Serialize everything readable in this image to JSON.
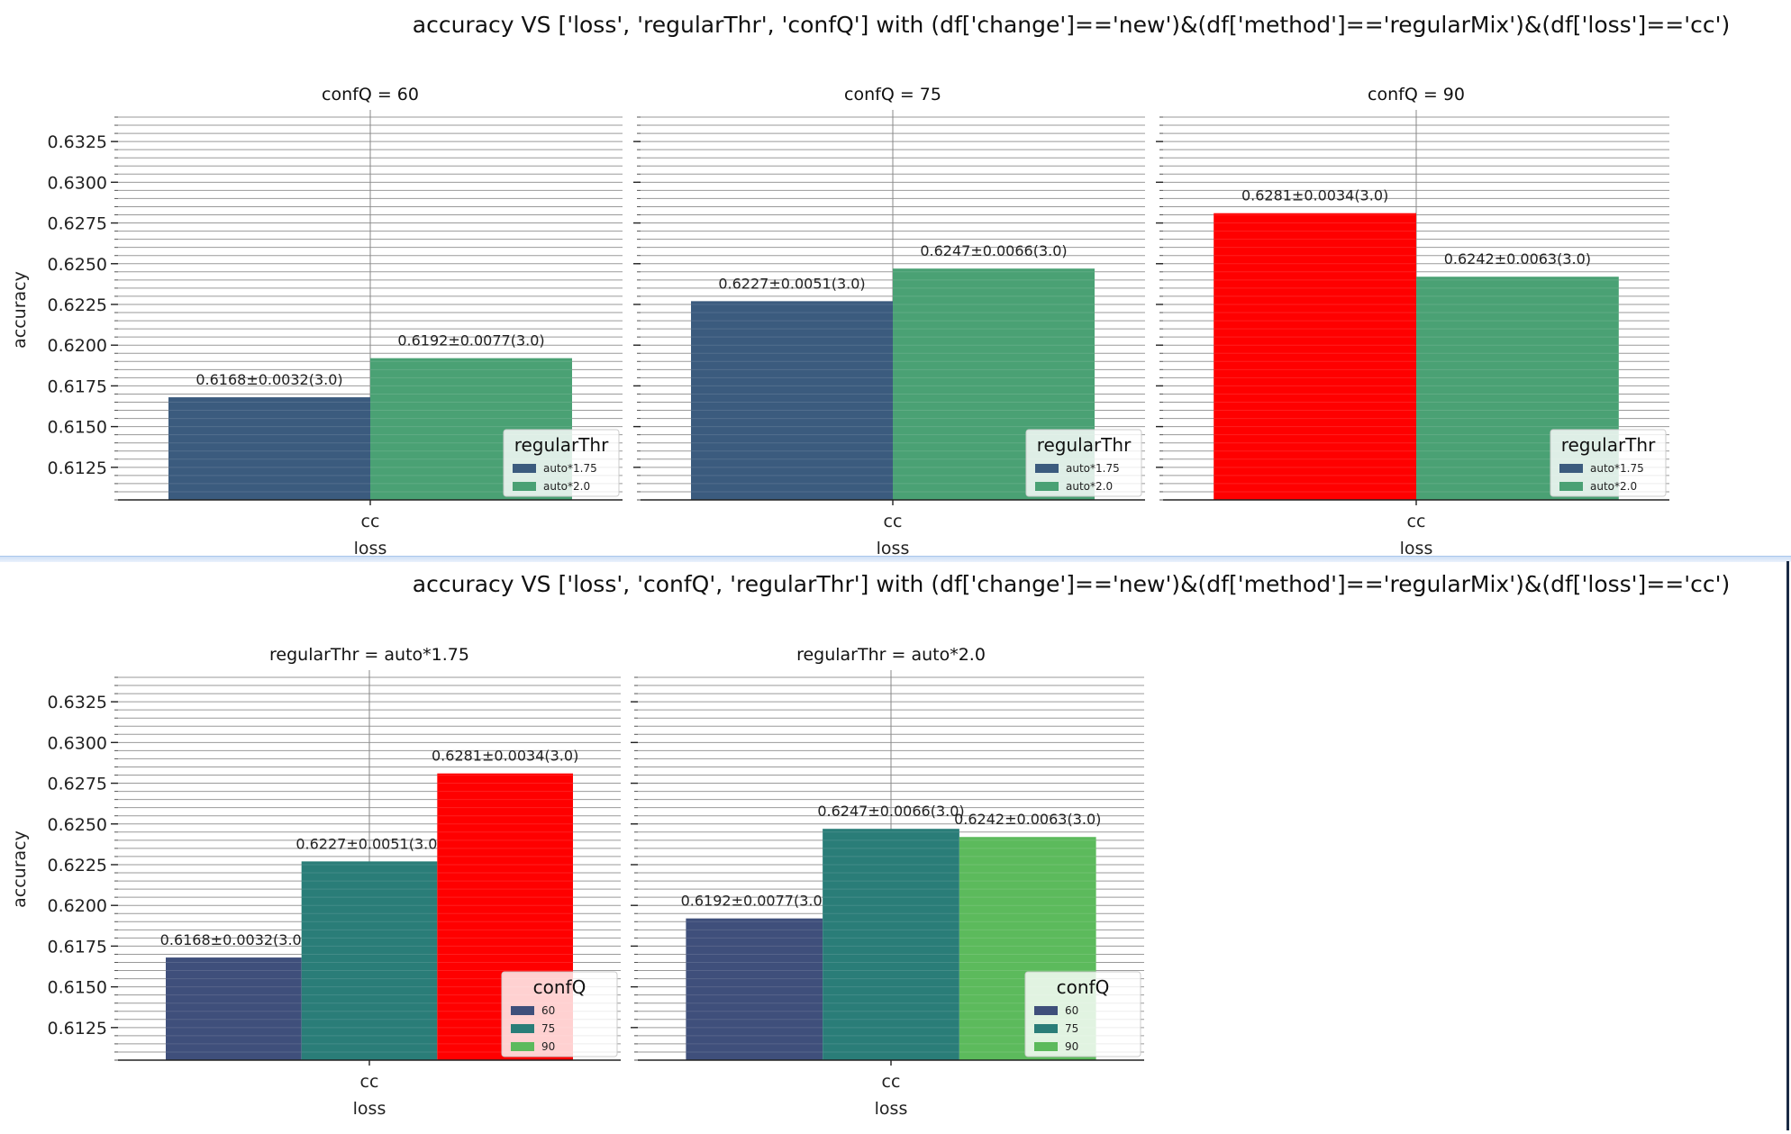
{
  "figures": [
    {
      "title": "accuracy VS ['loss', 'regularThr', 'confQ'] with (df['change']=='new')&(df['method']=='regularMix')&(df['loss']=='cc')",
      "ylabel": "accuracy",
      "legend_title": "regularThr",
      "legend_labels": [
        "auto*1.75",
        "auto*2.0"
      ],
      "legend_colors": [
        "#3b5b7e",
        "#4aa174"
      ]
    },
    {
      "title": "accuracy VS ['loss', 'confQ', 'regularThr'] with (df['change']=='new')&(df['method']=='regularMix')&(df['loss']=='cc')",
      "ylabel": "accuracy",
      "legend_title": "confQ",
      "legend_labels": [
        "60",
        "75",
        "90"
      ],
      "legend_colors": [
        "#3f4f7b",
        "#2a7d78",
        "#5cba5c"
      ]
    }
  ],
  "chart_data": [
    {
      "type": "bar",
      "title": "confQ = 60",
      "xlabel": "loss",
      "ylabel": "accuracy",
      "categories": [
        "cc"
      ],
      "ylim": [
        0.6105,
        0.634
      ],
      "yticks": [
        0.6125,
        0.615,
        0.6175,
        0.62,
        0.6225,
        0.625,
        0.6275,
        0.63,
        0.6325
      ],
      "ytick_labels": [
        "0.6125",
        "0.6150",
        "0.6175",
        "0.6200",
        "0.6225",
        "0.6250",
        "0.6275",
        "0.6300",
        "0.6325"
      ],
      "grid": true,
      "legend": "lower-right",
      "series": [
        {
          "name": "auto*1.75",
          "values": [
            0.6168
          ],
          "label": "0.6168±0.0032(3.0)",
          "color": "#3b5b7e"
        },
        {
          "name": "auto*2.0",
          "values": [
            0.6192
          ],
          "label": "0.6192±0.0077(3.0)",
          "color": "#4aa174"
        }
      ]
    },
    {
      "type": "bar",
      "title": "confQ = 75",
      "xlabel": "loss",
      "ylabel": "",
      "categories": [
        "cc"
      ],
      "ylim": [
        0.6105,
        0.634
      ],
      "yticks": [
        0.6125,
        0.615,
        0.6175,
        0.62,
        0.6225,
        0.625,
        0.6275,
        0.63,
        0.6325
      ],
      "ytick_labels": [],
      "grid": true,
      "legend": "lower-right",
      "series": [
        {
          "name": "auto*1.75",
          "values": [
            0.6227
          ],
          "label": "0.6227±0.0051(3.0)",
          "color": "#3b5b7e"
        },
        {
          "name": "auto*2.0",
          "values": [
            0.6247
          ],
          "label": "0.6247±0.0066(3.0)",
          "color": "#4aa174"
        }
      ]
    },
    {
      "type": "bar",
      "title": "confQ = 90",
      "xlabel": "loss",
      "ylabel": "",
      "categories": [
        "cc"
      ],
      "ylim": [
        0.6105,
        0.634
      ],
      "yticks": [
        0.6125,
        0.615,
        0.6175,
        0.62,
        0.6225,
        0.625,
        0.6275,
        0.63,
        0.6325
      ],
      "ytick_labels": [],
      "grid": true,
      "legend": "lower-right",
      "series": [
        {
          "name": "auto*1.75",
          "values": [
            0.6281
          ],
          "label": "0.6281±0.0034(3.0)",
          "color": "#ff0000"
        },
        {
          "name": "auto*2.0",
          "values": [
            0.6242
          ],
          "label": "0.6242±0.0063(3.0)",
          "color": "#4aa174"
        }
      ]
    },
    {
      "type": "bar",
      "title": "regularThr = auto*1.75",
      "xlabel": "loss",
      "ylabel": "accuracy",
      "categories": [
        "cc"
      ],
      "ylim": [
        0.6105,
        0.634
      ],
      "yticks": [
        0.6125,
        0.615,
        0.6175,
        0.62,
        0.6225,
        0.625,
        0.6275,
        0.63,
        0.6325
      ],
      "ytick_labels": [
        "0.6125",
        "0.6150",
        "0.6175",
        "0.6200",
        "0.6225",
        "0.6250",
        "0.6275",
        "0.6300",
        "0.6325"
      ],
      "grid": true,
      "legend": "lower-right",
      "series": [
        {
          "name": "60",
          "values": [
            0.6168
          ],
          "label": "0.6168±0.0032(3.0)",
          "color": "#3f4f7b"
        },
        {
          "name": "75",
          "values": [
            0.6227
          ],
          "label": "0.6227±0.0051(3.0)",
          "color": "#2a7d78"
        },
        {
          "name": "90",
          "values": [
            0.6281
          ],
          "label": "0.6281±0.0034(3.0)",
          "color": "#ff0000"
        }
      ]
    },
    {
      "type": "bar",
      "title": "regularThr = auto*2.0",
      "xlabel": "loss",
      "ylabel": "",
      "categories": [
        "cc"
      ],
      "ylim": [
        0.6105,
        0.634
      ],
      "yticks": [
        0.6125,
        0.615,
        0.6175,
        0.62,
        0.6225,
        0.625,
        0.6275,
        0.63,
        0.6325
      ],
      "ytick_labels": [],
      "grid": true,
      "legend": "lower-right",
      "series": [
        {
          "name": "60",
          "values": [
            0.6192
          ],
          "label": "0.6192±0.0077(3.0)",
          "color": "#3f4f7b"
        },
        {
          "name": "75",
          "values": [
            0.6247
          ],
          "label": "0.6247±0.0066(3.0)",
          "color": "#2a7d78"
        },
        {
          "name": "90",
          "values": [
            0.6242
          ],
          "label": "0.6242±0.0063(3.0)",
          "color": "#5cba5c"
        }
      ]
    }
  ]
}
